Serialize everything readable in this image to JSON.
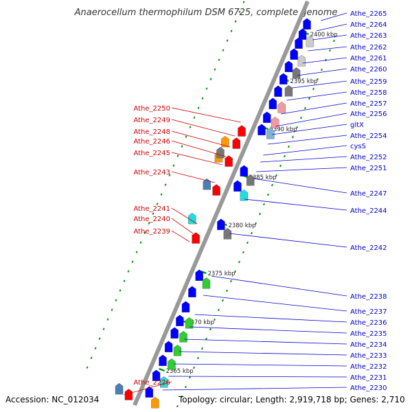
{
  "title": "Anaerocellum thermophilum DSM 6725, complete genome",
  "footer": {
    "accession": "Accession: NC_012034",
    "summary": "Topology: circular; Length: 2,919,718 bp; Genes: 2,710"
  },
  "colors": {
    "forward_gene": "#ff0000",
    "reverse_gene": "#0000ff",
    "backbone": "#999999",
    "tick": "#009900",
    "label_forward": "#cc0000",
    "label_reverse": "#0000cc"
  },
  "ticks": [
    "2400 kbp",
    "2395 kbp",
    "2390 kbp",
    "2385 kbp",
    "2380 kbp",
    "2375 kbp",
    "2370 kbp",
    "2365 kbp"
  ],
  "labels_left": [
    "Athe_2250",
    "Athe_2249",
    "Athe_2248",
    "Athe_2246",
    "Athe_2245",
    "Athe_2243",
    "Athe_2241",
    "Athe_2240",
    "Athe_2239",
    "Athe_2226"
  ],
  "labels_right": [
    "Athe_2265",
    "Athe_2264",
    "Athe_2263",
    "Athe_2262",
    "Athe_2261",
    "Athe_2260",
    "Athe_2259",
    "Athe_2258",
    "Athe_2257",
    "Athe_2256",
    "gltX",
    "Athe_2254",
    "cysS",
    "Athe_2252",
    "Athe_2251",
    "Athe_2247",
    "Athe_2244",
    "Athe_2242",
    "Athe_2238",
    "Athe_2237",
    "Athe_2236",
    "Athe_2235",
    "Athe_2234",
    "Athe_2233",
    "Athe_2232",
    "Athe_2231",
    "Athe_2230"
  ]
}
